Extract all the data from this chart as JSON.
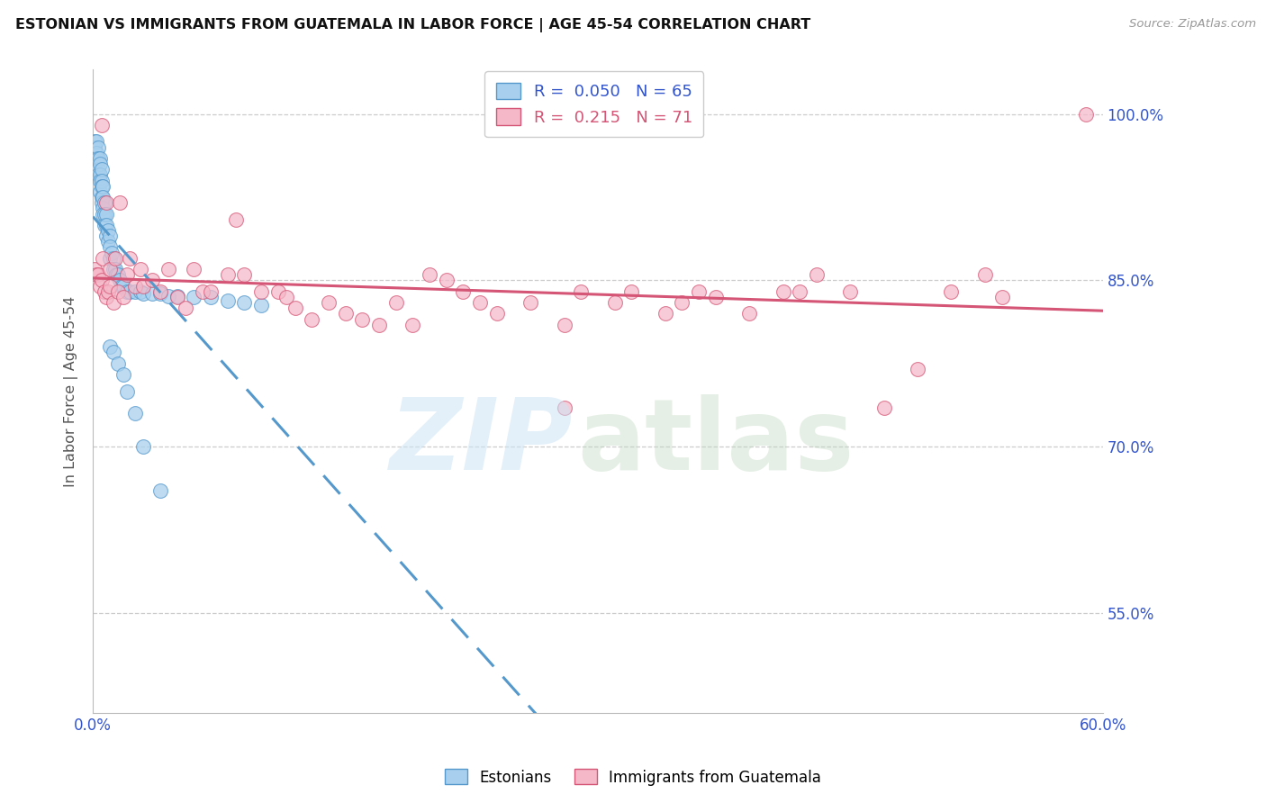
{
  "title": "ESTONIAN VS IMMIGRANTS FROM GUATEMALA IN LABOR FORCE | AGE 45-54 CORRELATION CHART",
  "source": "Source: ZipAtlas.com",
  "ylabel": "In Labor Force | Age 45-54",
  "xmin": 0.0,
  "xmax": 0.6,
  "ymin": 0.46,
  "ymax": 1.04,
  "ytick_positions": [
    0.55,
    0.7,
    0.85,
    1.0
  ],
  "ytick_labels": [
    "55.0%",
    "70.0%",
    "85.0%",
    "100.0%"
  ],
  "xtick_positions": [
    0.0,
    0.1,
    0.2,
    0.3,
    0.4,
    0.5,
    0.6
  ],
  "xtick_labels": [
    "0.0%",
    "",
    "",
    "",
    "",
    "",
    "60.0%"
  ],
  "blue_color": "#a8d0ee",
  "blue_edge": "#5599cc",
  "pink_color": "#f5b8c8",
  "pink_edge": "#d45575",
  "trend_blue_color": "#5599cc",
  "trend_pink_color": "#d45575",
  "axis_label_color": "#3355cc",
  "grid_color": "#cccccc",
  "title_color": "#111111",
  "r1": 0.05,
  "n1": 65,
  "r2": 0.215,
  "n2": 71,
  "blue_x": [
    0.001,
    0.001,
    0.002,
    0.002,
    0.002,
    0.003,
    0.003,
    0.003,
    0.003,
    0.004,
    0.004,
    0.004,
    0.004,
    0.004,
    0.005,
    0.005,
    0.005,
    0.005,
    0.005,
    0.006,
    0.006,
    0.006,
    0.006,
    0.007,
    0.007,
    0.007,
    0.008,
    0.008,
    0.008,
    0.009,
    0.009,
    0.01,
    0.01,
    0.01,
    0.011,
    0.012,
    0.012,
    0.013,
    0.014,
    0.015,
    0.016,
    0.017,
    0.018,
    0.02,
    0.022,
    0.025,
    0.028,
    0.03,
    0.035,
    0.04,
    0.045,
    0.05,
    0.06,
    0.07,
    0.08,
    0.09,
    0.1,
    0.01,
    0.012,
    0.015,
    0.018,
    0.02,
    0.025,
    0.03,
    0.04
  ],
  "blue_y": [
    0.975,
    0.97,
    0.975,
    0.965,
    0.96,
    0.97,
    0.96,
    0.95,
    0.945,
    0.96,
    0.955,
    0.945,
    0.94,
    0.93,
    0.95,
    0.94,
    0.935,
    0.925,
    0.92,
    0.935,
    0.925,
    0.915,
    0.91,
    0.92,
    0.91,
    0.9,
    0.91,
    0.9,
    0.89,
    0.895,
    0.885,
    0.89,
    0.88,
    0.87,
    0.875,
    0.87,
    0.86,
    0.86,
    0.855,
    0.855,
    0.85,
    0.845,
    0.845,
    0.84,
    0.84,
    0.84,
    0.84,
    0.838,
    0.838,
    0.838,
    0.836,
    0.836,
    0.835,
    0.835,
    0.832,
    0.83,
    0.828,
    0.79,
    0.785,
    0.775,
    0.765,
    0.75,
    0.73,
    0.7,
    0.66
  ],
  "pink_x": [
    0.001,
    0.002,
    0.003,
    0.004,
    0.005,
    0.005,
    0.006,
    0.007,
    0.008,
    0.008,
    0.009,
    0.01,
    0.01,
    0.012,
    0.013,
    0.015,
    0.016,
    0.018,
    0.02,
    0.022,
    0.025,
    0.028,
    0.03,
    0.035,
    0.04,
    0.045,
    0.05,
    0.055,
    0.06,
    0.065,
    0.07,
    0.08,
    0.085,
    0.09,
    0.1,
    0.11,
    0.115,
    0.12,
    0.13,
    0.14,
    0.15,
    0.16,
    0.17,
    0.18,
    0.19,
    0.2,
    0.21,
    0.22,
    0.23,
    0.24,
    0.26,
    0.28,
    0.29,
    0.31,
    0.32,
    0.34,
    0.35,
    0.36,
    0.37,
    0.39,
    0.41,
    0.43,
    0.45,
    0.47,
    0.49,
    0.51,
    0.53,
    0.54,
    0.28,
    0.42,
    0.59
  ],
  "pink_y": [
    0.86,
    0.855,
    0.855,
    0.845,
    0.99,
    0.85,
    0.87,
    0.84,
    0.835,
    0.92,
    0.84,
    0.845,
    0.86,
    0.83,
    0.87,
    0.84,
    0.92,
    0.835,
    0.855,
    0.87,
    0.845,
    0.86,
    0.845,
    0.85,
    0.84,
    0.86,
    0.835,
    0.825,
    0.86,
    0.84,
    0.84,
    0.855,
    0.905,
    0.855,
    0.84,
    0.84,
    0.835,
    0.825,
    0.815,
    0.83,
    0.82,
    0.815,
    0.81,
    0.83,
    0.81,
    0.855,
    0.85,
    0.84,
    0.83,
    0.82,
    0.83,
    0.81,
    0.84,
    0.83,
    0.84,
    0.82,
    0.83,
    0.84,
    0.835,
    0.82,
    0.84,
    0.855,
    0.84,
    0.735,
    0.77,
    0.84,
    0.855,
    0.835,
    0.735,
    0.84,
    1.0
  ]
}
